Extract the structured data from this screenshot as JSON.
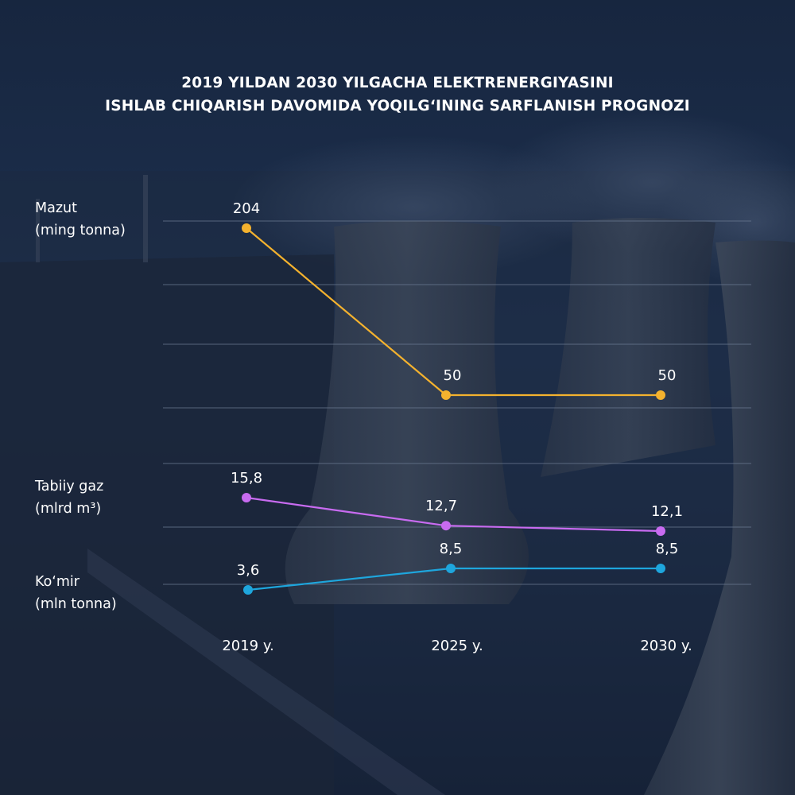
{
  "title_lines": [
    "2019 YILDAN  2030 YILGACHA ELEKTRENERGIYASINI",
    "ISHLAB CHIQARISH DAVOMIDA YOQILG‘INING SARFLANISH PROGNOZI"
  ],
  "colors": {
    "background": "#1b2a45",
    "mazut": "#f4b22e",
    "tabiiy_gaz": "#c86bf0",
    "komir": "#1ea6dd",
    "gridline": "#6b7a92",
    "text": "#ffffff"
  },
  "series_labels": {
    "mazut": [
      "Mazut",
      "(ming tonna)"
    ],
    "tabiiy_gaz": [
      "Tabiiy gaz",
      "(mlrd m³)"
    ],
    "komir": [
      "Ko‘mir",
      "(mln tonna)"
    ]
  },
  "chart_data": {
    "type": "line",
    "categories": [
      "2019 y.",
      "2025 y.",
      "2030 y."
    ],
    "series": [
      {
        "name": "Mazut (ming tonna)",
        "key": "mazut",
        "values": [
          204,
          50,
          50
        ],
        "labels": [
          "204",
          "50",
          "50"
        ]
      },
      {
        "name": "Tabiiy gaz (mlrd m³)",
        "key": "tabiiy_gaz",
        "values": [
          15.8,
          12.7,
          12.1
        ],
        "labels": [
          "15,8",
          "12,7",
          "12,1"
        ]
      },
      {
        "name": "Ko‘mir (mln tonna)",
        "key": "komir",
        "values": [
          3.6,
          8.5,
          8.5
        ],
        "labels": [
          "3,6",
          "8,5",
          "8,5"
        ]
      }
    ],
    "grid": true,
    "legend": "left"
  }
}
